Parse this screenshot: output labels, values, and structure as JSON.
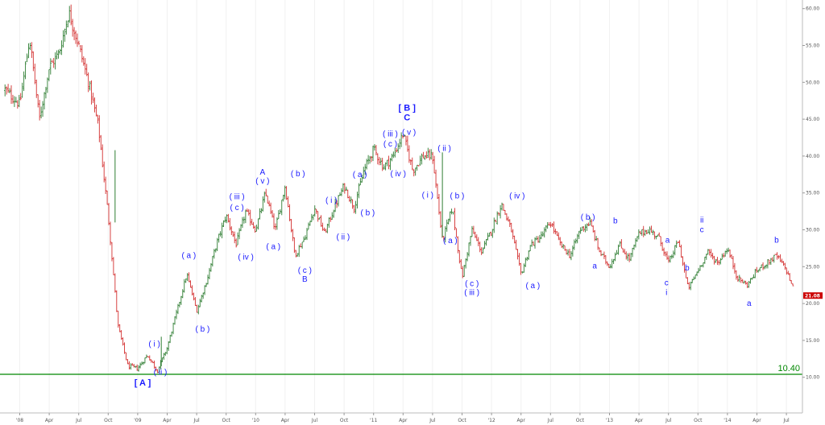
{
  "chart_data": {
    "type": "candlestick",
    "colors": {
      "up": "#2e7d32",
      "down": "#d32f2f",
      "support": "#008800",
      "wave_labels": "#1a1aff",
      "last_price_tag": "#cc0000"
    },
    "y_range": [
      8,
      61
    ],
    "y_ticks": [
      "10.00",
      "15.00",
      "20.00",
      "25.00",
      "30.00",
      "35.00",
      "40.00",
      "45.00",
      "50.00",
      "55.00",
      "60.00"
    ],
    "x_ticks": [
      {
        "label": "'08",
        "m": 0
      },
      {
        "label": "Apr",
        "m": 3
      },
      {
        "label": "Jul",
        "m": 6
      },
      {
        "label": "Oct",
        "m": 9
      },
      {
        "label": "'09",
        "m": 12
      },
      {
        "label": "Apr",
        "m": 15
      },
      {
        "label": "Jul",
        "m": 18
      },
      {
        "label": "Oct",
        "m": 21
      },
      {
        "label": "'10",
        "m": 24
      },
      {
        "label": "Apr",
        "m": 27
      },
      {
        "label": "Jul",
        "m": 30
      },
      {
        "label": "Oct",
        "m": 33
      },
      {
        "label": "'11",
        "m": 36
      },
      {
        "label": "Apr",
        "m": 39
      },
      {
        "label": "Jul",
        "m": 42
      },
      {
        "label": "Oct",
        "m": 45
      },
      {
        "label": "'12",
        "m": 48
      },
      {
        "label": "Apr",
        "m": 51
      },
      {
        "label": "Jul",
        "m": 54
      },
      {
        "label": "Oct",
        "m": 57
      },
      {
        "label": "'13",
        "m": 60
      },
      {
        "label": "Apr",
        "m": 63
      },
      {
        "label": "Jul",
        "m": 66
      },
      {
        "label": "Oct",
        "m": 69
      },
      {
        "label": "'14",
        "m": 72
      },
      {
        "label": "Apr",
        "m": 75
      },
      {
        "label": "Jul",
        "m": 78
      }
    ],
    "price_path": [
      [
        -1.5,
        49
      ],
      [
        0,
        47
      ],
      [
        1,
        56
      ],
      [
        2,
        45
      ],
      [
        3,
        52
      ],
      [
        4,
        54
      ],
      [
        5,
        59.5
      ],
      [
        6,
        55
      ],
      [
        7,
        50
      ],
      [
        8,
        44
      ],
      [
        9,
        32
      ],
      [
        10,
        17
      ],
      [
        11,
        11.5
      ],
      [
        12,
        11.2
      ],
      [
        13,
        13
      ],
      [
        14,
        10.9
      ],
      [
        15,
        14
      ],
      [
        16,
        19
      ],
      [
        17,
        24
      ],
      [
        18,
        19
      ],
      [
        19,
        23
      ],
      [
        20,
        28
      ],
      [
        21,
        32
      ],
      [
        22,
        28
      ],
      [
        23,
        32.5
      ],
      [
        24,
        30
      ],
      [
        25,
        35
      ],
      [
        26,
        30
      ],
      [
        27,
        36
      ],
      [
        28,
        26.5
      ],
      [
        29,
        29
      ],
      [
        30,
        33
      ],
      [
        31,
        29.5
      ],
      [
        32,
        33
      ],
      [
        33,
        36
      ],
      [
        34,
        33
      ],
      [
        35,
        38
      ],
      [
        36,
        41
      ],
      [
        37,
        38.5
      ],
      [
        38,
        40
      ],
      [
        39,
        43
      ],
      [
        40,
        38
      ],
      [
        41,
        40
      ],
      [
        42,
        40
      ],
      [
        43,
        28.5
      ],
      [
        44,
        33
      ],
      [
        45,
        23.5
      ],
      [
        46,
        30
      ],
      [
        47,
        27
      ],
      [
        48,
        30
      ],
      [
        49,
        33.5
      ],
      [
        50,
        30
      ],
      [
        51,
        24
      ],
      [
        52,
        28
      ],
      [
        53,
        29
      ],
      [
        54,
        31
      ],
      [
        55,
        28
      ],
      [
        56,
        26.5
      ],
      [
        57,
        30
      ],
      [
        58,
        31
      ],
      [
        59,
        27
      ],
      [
        60,
        25
      ],
      [
        61,
        28
      ],
      [
        62,
        26
      ],
      [
        63,
        29.5
      ],
      [
        64,
        30
      ],
      [
        65,
        29
      ],
      [
        66,
        25.5
      ],
      [
        67,
        28.5
      ],
      [
        68,
        22
      ],
      [
        69,
        24.5
      ],
      [
        70,
        27
      ],
      [
        71,
        25.5
      ],
      [
        72,
        27.5
      ],
      [
        73,
        23.5
      ],
      [
        74,
        22.5
      ],
      [
        75,
        24.5
      ],
      [
        76,
        25.5
      ],
      [
        77,
        26.5
      ],
      [
        78,
        24.5
      ],
      [
        78.7,
        22
      ]
    ],
    "support_level": {
      "value": 10.4,
      "label": "10.40"
    },
    "last_price": {
      "value": 21.08,
      "label": "21.08"
    },
    "annotations": [
      {
        "text": "[ A ]",
        "m": 12.5,
        "y": 9.2,
        "major": true
      },
      {
        "text": "( i )",
        "m": 13.7,
        "y": 14.5
      },
      {
        "text": "( ii )",
        "m": 14.3,
        "y": 10.7
      },
      {
        "text": "( a )",
        "m": 17.2,
        "y": 26.5
      },
      {
        "text": "( b )",
        "m": 18.6,
        "y": 16.5
      },
      {
        "text": "( iii )",
        "m": 22.1,
        "y": 34.5
      },
      {
        "text": "( c )",
        "m": 22.1,
        "y": 33.0
      },
      {
        "text": "( iv )",
        "m": 23.0,
        "y": 26.3
      },
      {
        "text": "A",
        "m": 24.7,
        "y": 37.8
      },
      {
        "text": "( v )",
        "m": 24.7,
        "y": 36.6
      },
      {
        "text": "( a )",
        "m": 25.8,
        "y": 27.7
      },
      {
        "text": "( b )",
        "m": 28.3,
        "y": 37.6
      },
      {
        "text": "( c )",
        "m": 29.0,
        "y": 24.5
      },
      {
        "text": "B",
        "m": 29.0,
        "y": 23.3
      },
      {
        "text": "( i )",
        "m": 31.7,
        "y": 34.0
      },
      {
        "text": "( ii )",
        "m": 32.9,
        "y": 29.0
      },
      {
        "text": "( a )",
        "m": 34.6,
        "y": 37.5
      },
      {
        "text": "( b )",
        "m": 35.4,
        "y": 32.3
      },
      {
        "text": "( iii )",
        "m": 37.7,
        "y": 43.0
      },
      {
        "text": "( c )",
        "m": 37.7,
        "y": 41.6
      },
      {
        "text": "( iv )",
        "m": 38.5,
        "y": 37.6
      },
      {
        "text": "[ B ]",
        "m": 39.4,
        "y": 46.5,
        "major": true
      },
      {
        "text": "C",
        "m": 39.4,
        "y": 45.2,
        "major": true
      },
      {
        "text": "( v )",
        "m": 39.6,
        "y": 43.2
      },
      {
        "text": "( i )",
        "m": 41.5,
        "y": 34.7
      },
      {
        "text": "( ii )",
        "m": 43.2,
        "y": 41.0
      },
      {
        "text": "( b )",
        "m": 44.5,
        "y": 34.6
      },
      {
        "text": "( a )",
        "m": 43.8,
        "y": 28.5
      },
      {
        "text": "( c )",
        "m": 46.0,
        "y": 22.7
      },
      {
        "text": "( iii )",
        "m": 46.0,
        "y": 21.5
      },
      {
        "text": "( iv )",
        "m": 50.6,
        "y": 34.6
      },
      {
        "text": "( a )",
        "m": 52.2,
        "y": 22.4
      },
      {
        "text": "( b )",
        "m": 57.8,
        "y": 31.7
      },
      {
        "text": "a",
        "m": 58.5,
        "y": 25.1
      },
      {
        "text": "b",
        "m": 60.6,
        "y": 31.2
      },
      {
        "text": "a",
        "m": 65.9,
        "y": 28.6
      },
      {
        "text": "c",
        "m": 65.8,
        "y": 22.8
      },
      {
        "text": "i",
        "m": 65.8,
        "y": 21.5
      },
      {
        "text": "b",
        "m": 67.9,
        "y": 24.8
      },
      {
        "text": "ii",
        "m": 69.4,
        "y": 31.3
      },
      {
        "text": "c",
        "m": 69.4,
        "y": 30.0
      },
      {
        "text": "a",
        "m": 74.2,
        "y": 20.0
      },
      {
        "text": "b",
        "m": 77.0,
        "y": 28.6
      }
    ]
  }
}
